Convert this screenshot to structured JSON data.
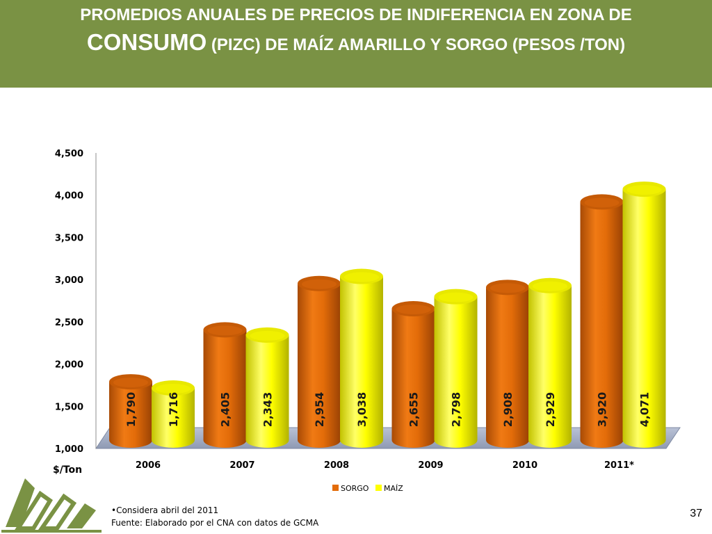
{
  "header": {
    "title_line1": "PROMEDIOS ANUALES DE PRECIOS DE INDIFERENCIA EN ZONA DE",
    "title_line2_big": "CONSUMO",
    "title_line2_rest": " (PIZC) DE MAÍZ AMARILLO Y SORGO  (PESOS /TON)"
  },
  "chart_data": {
    "type": "bar",
    "title": "PROMEDIOS ANUALES DE PRECIOS DE INDIFERENCIA EN ZONA DE CONSUMO (PIZC) DE MAÍZ AMARILLO Y SORGO (PESOS /TON)",
    "categories": [
      "2006",
      "2007",
      "2008",
      "2009",
      "2010",
      "2011*"
    ],
    "series": [
      {
        "name": "SORGO",
        "values": [
          1790,
          2405,
          2954,
          2655,
          2908,
          3920
        ],
        "labels": [
          "1,790",
          "2,405",
          "2,954",
          "2,655",
          "2,908",
          "3,920"
        ],
        "color": "#e36c09"
      },
      {
        "name": "MAÍZ",
        "values": [
          1716,
          2343,
          3038,
          2798,
          2929,
          4071
        ],
        "labels": [
          "1,716",
          "2,343",
          "3,038",
          "2,798",
          "2,929",
          "4,071"
        ],
        "color": "#ffff00"
      }
    ],
    "ylim": [
      1000,
      4500
    ],
    "yticks": [
      1000,
      1500,
      2000,
      2500,
      3000,
      3500,
      4000,
      4500
    ],
    "ytick_labels": [
      "1,000",
      "1,500",
      "2,000",
      "2,500",
      "3,000",
      "3,500",
      "4,000",
      "4,500"
    ],
    "ylabel": "$/Ton",
    "xlabel": "",
    "legend_position": "bottom",
    "grid": false
  },
  "footer": {
    "note": "•Considera  abril del 2011",
    "source": "Fuente: Elaborado por el CNA con datos de GCMA",
    "page_number": "37"
  }
}
